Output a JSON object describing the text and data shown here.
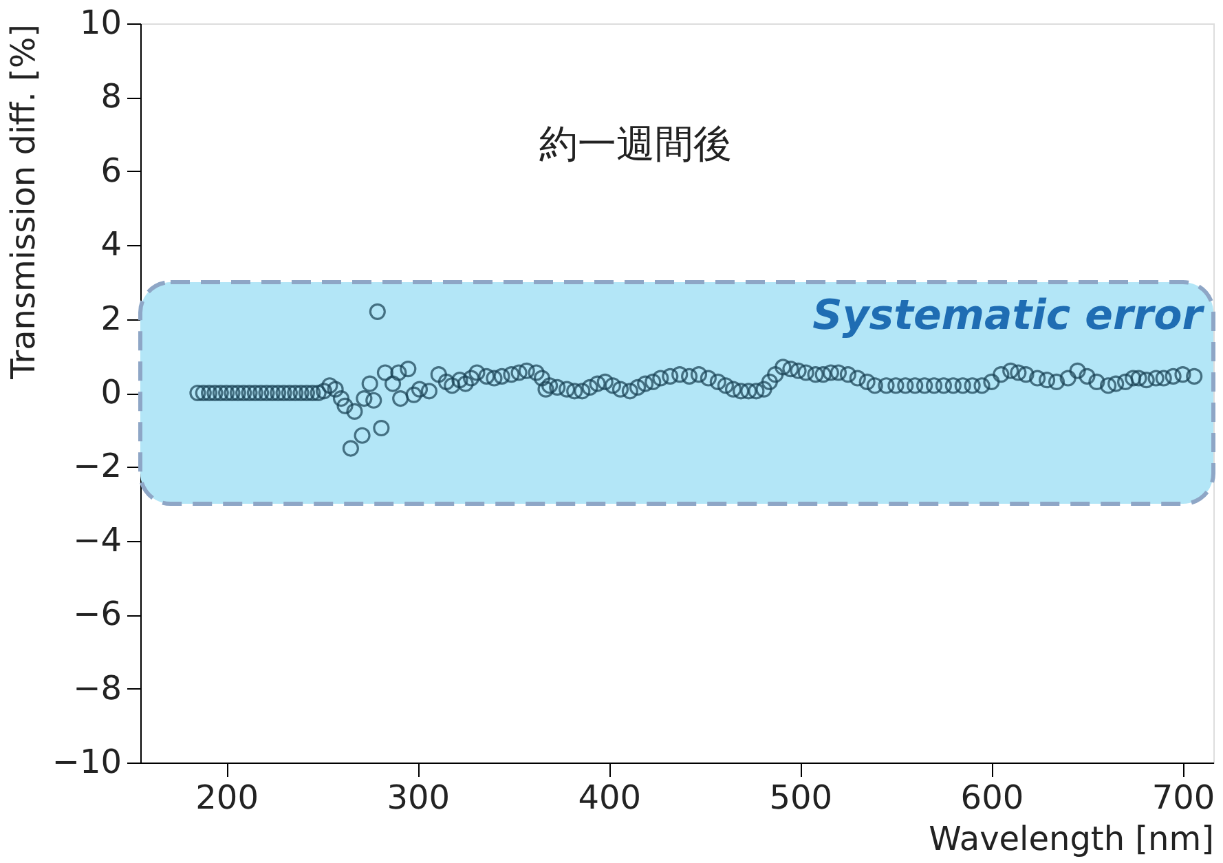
{
  "chart_data": {
    "type": "scatter",
    "title": "約一週間後",
    "xlabel": "Wavelength [nm]",
    "ylabel": "Transmission diff. [%]",
    "xlim": [
      155,
      716
    ],
    "ylim": [
      -10,
      10
    ],
    "xticks": [
      200,
      300,
      400,
      500,
      600,
      700
    ],
    "yticks": [
      -10,
      -8,
      -6,
      -4,
      -2,
      0,
      2,
      4,
      6,
      8,
      10
    ],
    "grid": false,
    "marker": "circle",
    "bands": [
      {
        "axis": "y",
        "from": -3,
        "to": 3,
        "label": "Systematic error",
        "color": "#b3e6f7"
      }
    ],
    "series": [
      {
        "color": "#163f52",
        "x": [
          185,
          188,
          191,
          194,
          197,
          200,
          203,
          206,
          209,
          212,
          215,
          218,
          221,
          224,
          227,
          230,
          233,
          236,
          239,
          242,
          245,
          248,
          251,
          254,
          257,
          260,
          262,
          265,
          267,
          271,
          272,
          275,
          277,
          279,
          281,
          283,
          287,
          290,
          291,
          295,
          298,
          301,
          306,
          311,
          315,
          318,
          322,
          325,
          328,
          331,
          336,
          340,
          344,
          349,
          353,
          357,
          362,
          365,
          367,
          369,
          373,
          378,
          382,
          386,
          390,
          394,
          398,
          402,
          406,
          411,
          415,
          419,
          423,
          427,
          432,
          437,
          442,
          447,
          452,
          457,
          461,
          465,
          469,
          473,
          477,
          481,
          484,
          487,
          491,
          495,
          499,
          503,
          508,
          512,
          516,
          520,
          525,
          530,
          535,
          539,
          545,
          550,
          555,
          560,
          565,
          570,
          575,
          580,
          585,
          590,
          595,
          600,
          605,
          610,
          614,
          618,
          624,
          629,
          634,
          640,
          645,
          650,
          655,
          661,
          665,
          670,
          674,
          677,
          681,
          686,
          690,
          695,
          700,
          706
        ],
        "values": [
          0,
          0,
          0,
          0,
          0,
          0,
          0,
          0,
          0,
          0,
          0,
          0,
          0,
          0,
          0,
          0,
          0,
          0,
          0,
          0,
          0,
          0,
          0.05,
          0.2,
          0.1,
          -0.15,
          -0.35,
          -1.5,
          -0.5,
          -1.15,
          -0.15,
          0.25,
          -0.2,
          2.2,
          -0.95,
          0.55,
          0.25,
          0.55,
          -0.15,
          0.65,
          -0.05,
          0.1,
          0.05,
          0.5,
          0.3,
          0.2,
          0.35,
          0.25,
          0.4,
          0.55,
          0.45,
          0.4,
          0.45,
          0.5,
          0.55,
          0.6,
          0.55,
          0.4,
          0.1,
          0.2,
          0.15,
          0.1,
          0.05,
          0.05,
          0.15,
          0.25,
          0.3,
          0.2,
          0.1,
          0.05,
          0.15,
          0.25,
          0.3,
          0.4,
          0.45,
          0.5,
          0.45,
          0.5,
          0.4,
          0.3,
          0.2,
          0.1,
          0.05,
          0.05,
          0.05,
          0.1,
          0.3,
          0.5,
          0.7,
          0.65,
          0.6,
          0.55,
          0.5,
          0.5,
          0.55,
          0.55,
          0.5,
          0.4,
          0.3,
          0.2,
          0.2,
          0.2,
          0.2,
          0.2,
          0.2,
          0.2,
          0.2,
          0.2,
          0.2,
          0.2,
          0.2,
          0.3,
          0.5,
          0.6,
          0.55,
          0.5,
          0.4,
          0.35,
          0.3,
          0.4,
          0.6,
          0.45,
          0.3,
          0.2,
          0.25,
          0.3,
          0.4,
          0.4,
          0.35,
          0.4,
          0.4,
          0.45,
          0.5,
          0.45
        ]
      }
    ]
  }
}
